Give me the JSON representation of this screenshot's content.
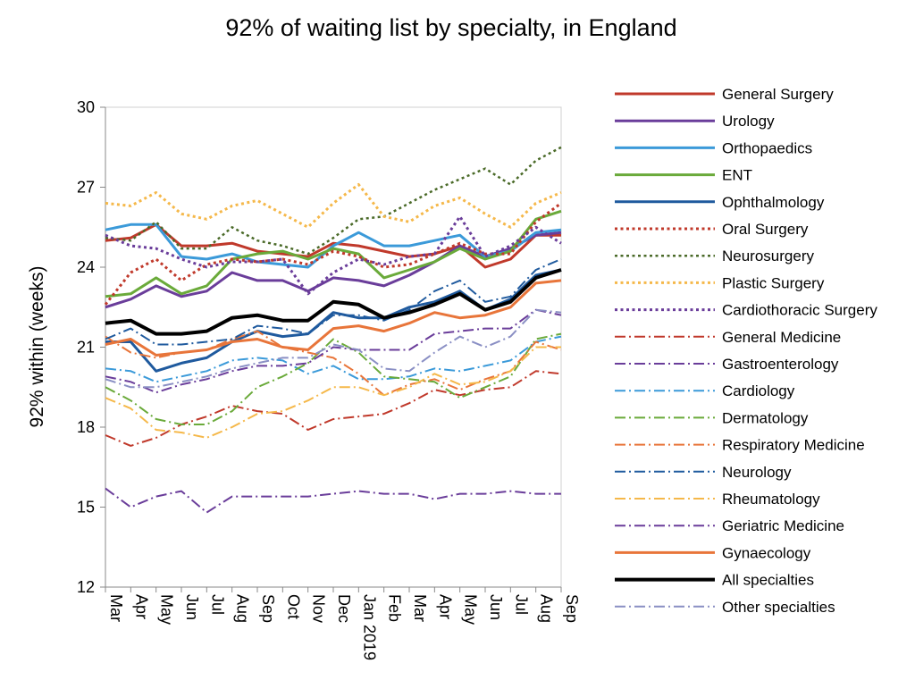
{
  "chart_data": {
    "type": "line",
    "title": "92% of waiting list by specialty, in England",
    "xlabel": "",
    "ylabel": "92% within (weeks)",
    "ylim": [
      12,
      30
    ],
    "yticks": [
      12,
      15,
      18,
      21,
      24,
      27,
      30
    ],
    "grid": false,
    "legend": "right",
    "categories": [
      "Mar",
      "Apr",
      "May",
      "Jun",
      "Jul",
      "Aug",
      "Sep",
      "Oct",
      "Nov",
      "Dec",
      "Jan 2019",
      "Feb",
      "Mar",
      "Apr",
      "May",
      "Jun",
      "Jul",
      "Aug",
      "Sep"
    ],
    "series": [
      {
        "name": "General Surgery",
        "color": "#c0392b",
        "dash": "solid",
        "width": 3,
        "values": [
          25.0,
          25.1,
          25.6,
          24.8,
          24.8,
          24.9,
          24.6,
          24.5,
          24.4,
          24.9,
          24.8,
          24.6,
          24.4,
          24.5,
          24.8,
          24.0,
          24.3,
          25.2,
          25.2
        ]
      },
      {
        "name": "Urology",
        "color": "#6a3d9a",
        "dash": "solid",
        "width": 3,
        "values": [
          22.5,
          22.8,
          23.3,
          22.9,
          23.1,
          23.8,
          23.5,
          23.5,
          23.1,
          23.6,
          23.5,
          23.3,
          23.7,
          24.2,
          24.8,
          24.4,
          24.7,
          25.2,
          25.3
        ]
      },
      {
        "name": "Orthopaedics",
        "color": "#3b9ad9",
        "dash": "solid",
        "width": 3,
        "values": [
          25.4,
          25.6,
          25.6,
          24.4,
          24.3,
          24.5,
          24.2,
          24.1,
          24.0,
          24.8,
          25.3,
          24.8,
          24.8,
          25.0,
          25.2,
          24.4,
          24.6,
          25.3,
          25.4
        ]
      },
      {
        "name": "ENT",
        "color": "#6aaa3a",
        "dash": "solid",
        "width": 3,
        "values": [
          22.9,
          23.0,
          23.6,
          23.0,
          23.3,
          24.3,
          24.5,
          24.6,
          24.3,
          24.7,
          24.5,
          23.6,
          23.9,
          24.2,
          24.7,
          24.3,
          24.6,
          25.8,
          26.1
        ]
      },
      {
        "name": "Ophthalmology",
        "color": "#1f5a9e",
        "dash": "solid",
        "width": 3,
        "values": [
          21.2,
          21.2,
          20.1,
          20.4,
          20.6,
          21.2,
          21.6,
          21.4,
          21.5,
          22.3,
          22.1,
          22.1,
          22.5,
          22.7,
          23.1,
          22.4,
          22.8,
          23.7,
          23.9
        ]
      },
      {
        "name": "Oral Surgery",
        "color": "#c0392b",
        "dash": "dot",
        "width": 3,
        "values": [
          22.6,
          23.8,
          24.3,
          23.5,
          24.1,
          24.3,
          24.2,
          24.3,
          24.1,
          24.6,
          24.4,
          24.0,
          24.1,
          24.5,
          24.9,
          24.5,
          24.5,
          25.7,
          26.4
        ]
      },
      {
        "name": "Neurosurgery",
        "color": "#4a6a28",
        "dash": "dot",
        "width": 2.5,
        "values": [
          25.1,
          25.0,
          25.7,
          24.7,
          24.7,
          25.5,
          25.0,
          24.8,
          24.5,
          25.1,
          25.8,
          25.9,
          26.4,
          26.9,
          27.3,
          27.7,
          27.1,
          28.0,
          28.5
        ]
      },
      {
        "name": "Plastic Surgery",
        "color": "#f5b84a",
        "dash": "dot",
        "width": 3,
        "values": [
          26.4,
          26.3,
          26.8,
          26.0,
          25.8,
          26.3,
          26.5,
          26.0,
          25.5,
          26.4,
          27.1,
          25.9,
          25.7,
          26.3,
          26.6,
          26.0,
          25.5,
          26.4,
          26.8
        ]
      },
      {
        "name": "Cardiothoracic Surgery",
        "color": "#6a3d9a",
        "dash": "dot",
        "width": 3,
        "values": [
          25.2,
          24.8,
          24.7,
          24.3,
          24.0,
          24.2,
          24.2,
          24.3,
          23.0,
          23.8,
          24.3,
          24.1,
          24.4,
          24.5,
          25.9,
          24.4,
          24.8,
          25.5,
          24.9
        ]
      },
      {
        "name": "General Medicine",
        "color": "#c0392b",
        "dash": "dashdot",
        "width": 2,
        "values": [
          17.7,
          17.3,
          17.6,
          18.1,
          18.4,
          18.8,
          18.6,
          18.5,
          17.9,
          18.3,
          18.4,
          18.5,
          18.9,
          19.4,
          19.2,
          19.4,
          19.5,
          20.1,
          20.0
        ]
      },
      {
        "name": "Gastroenterology",
        "color": "#6a3d9a",
        "dash": "dashdot",
        "width": 2,
        "values": [
          15.7,
          15.0,
          15.4,
          15.6,
          14.8,
          15.4,
          15.4,
          15.4,
          15.4,
          15.5,
          15.6,
          15.5,
          15.5,
          15.3,
          15.5,
          15.5,
          15.6,
          15.5,
          15.5
        ]
      },
      {
        "name": "Cardiology",
        "color": "#3b9ad9",
        "dash": "dashdot",
        "width": 2,
        "values": [
          20.2,
          20.1,
          19.7,
          19.9,
          20.1,
          20.5,
          20.6,
          20.5,
          20.0,
          20.3,
          19.8,
          19.8,
          19.9,
          20.2,
          20.1,
          20.3,
          20.5,
          21.2,
          21.4
        ]
      },
      {
        "name": "Dermatology",
        "color": "#6aaa3a",
        "dash": "dashdot",
        "width": 2,
        "values": [
          19.5,
          19.0,
          18.3,
          18.1,
          18.1,
          18.6,
          19.5,
          19.9,
          20.4,
          21.3,
          20.8,
          19.9,
          19.8,
          19.7,
          19.1,
          19.5,
          19.9,
          21.3,
          21.5
        ]
      },
      {
        "name": "Respiratory Medicine",
        "color": "#e8753a",
        "dash": "dashdot",
        "width": 2,
        "values": [
          21.4,
          20.8,
          20.6,
          20.8,
          20.9,
          21.3,
          21.6,
          21.0,
          20.8,
          20.6,
          20.0,
          19.2,
          19.6,
          19.8,
          19.4,
          19.8,
          20.1,
          21.2,
          20.9
        ]
      },
      {
        "name": "Neurology",
        "color": "#1f5a9e",
        "dash": "dashdot",
        "width": 2,
        "values": [
          21.3,
          21.7,
          21.1,
          21.1,
          21.2,
          21.3,
          21.8,
          21.7,
          21.5,
          22.2,
          22.2,
          22.0,
          22.4,
          23.1,
          23.5,
          22.7,
          22.9,
          23.9,
          24.3
        ]
      },
      {
        "name": "Rheumatology",
        "color": "#f5b84a",
        "dash": "dashdot",
        "width": 2,
        "values": [
          19.1,
          18.7,
          17.9,
          17.8,
          17.6,
          18.0,
          18.5,
          18.6,
          19.0,
          19.5,
          19.5,
          19.2,
          19.5,
          20.0,
          19.6,
          19.7,
          20.1,
          21.0,
          21.0
        ]
      },
      {
        "name": "Geriatric Medicine",
        "color": "#6a3d9a",
        "dash": "dashdot",
        "width": 2,
        "values": [
          19.9,
          19.7,
          19.3,
          19.6,
          19.8,
          20.1,
          20.3,
          20.3,
          20.4,
          21.0,
          20.9,
          20.9,
          20.9,
          21.5,
          21.6,
          21.7,
          21.7,
          22.4,
          22.2
        ]
      },
      {
        "name": "Gynaecology",
        "color": "#e8753a",
        "dash": "solid",
        "width": 3,
        "values": [
          21.1,
          21.3,
          20.7,
          20.8,
          20.9,
          21.2,
          21.3,
          21.0,
          20.9,
          21.7,
          21.8,
          21.6,
          21.9,
          22.3,
          22.1,
          22.2,
          22.5,
          23.4,
          23.5
        ]
      },
      {
        "name": "All specialties",
        "color": "#000000",
        "dash": "solid",
        "width": 4,
        "values": [
          21.9,
          22.0,
          21.5,
          21.5,
          21.6,
          22.1,
          22.2,
          22.0,
          22.0,
          22.7,
          22.6,
          22.1,
          22.3,
          22.6,
          23.0,
          22.4,
          22.7,
          23.6,
          23.9
        ]
      },
      {
        "name": "Other specialties",
        "color": "#8a8fc4",
        "dash": "dashdot",
        "width": 2,
        "values": [
          19.8,
          19.5,
          19.5,
          19.7,
          19.9,
          20.2,
          20.4,
          20.6,
          20.6,
          21.1,
          20.9,
          20.2,
          20.1,
          20.8,
          21.4,
          21.0,
          21.4,
          22.4,
          22.3
        ]
      }
    ]
  }
}
